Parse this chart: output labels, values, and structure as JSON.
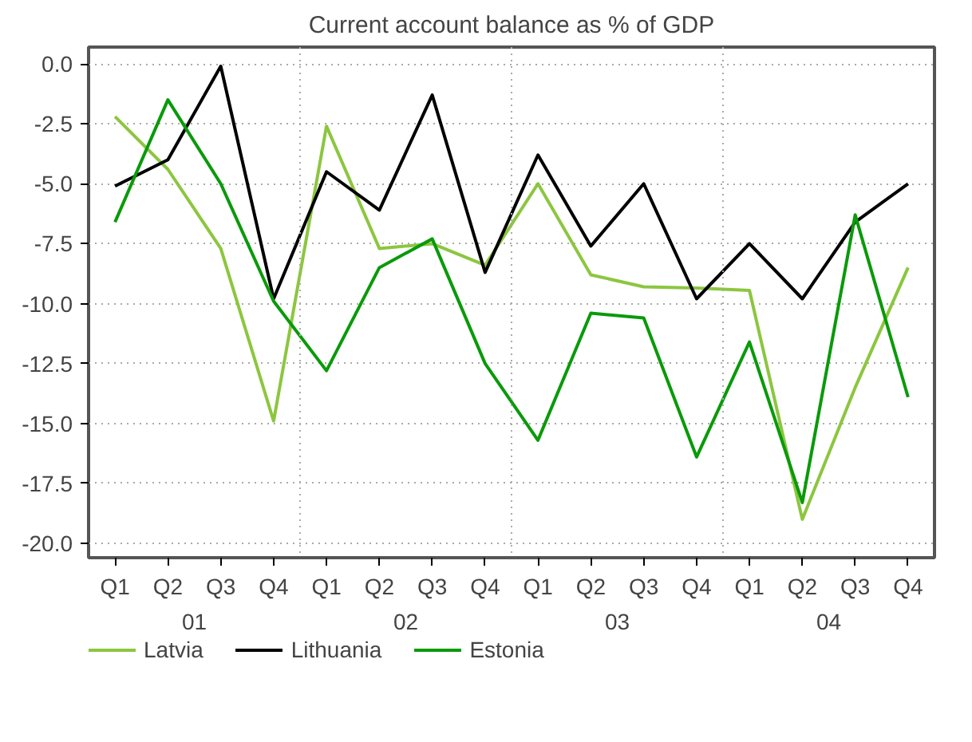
{
  "chart_data": {
    "type": "line",
    "title": "Current account balance as % of GDP",
    "categories": [
      "Q1",
      "Q2",
      "Q3",
      "Q4",
      "Q1",
      "Q2",
      "Q3",
      "Q4",
      "Q1",
      "Q2",
      "Q3",
      "Q4",
      "Q1",
      "Q2",
      "Q3",
      "Q4"
    ],
    "series": [
      {
        "name": "Latvia",
        "color": "#8cc63f",
        "values": [
          -2.2,
          -4.4,
          -7.7,
          -14.9,
          -2.6,
          -7.7,
          -7.5,
          -8.4,
          -5.0,
          -8.8,
          -9.3,
          -9.35,
          -9.45,
          -19.0,
          -13.5,
          -8.5
        ]
      },
      {
        "name": "Lithuania",
        "color": "#000000",
        "values": [
          -5.1,
          -4.0,
          -0.1,
          -9.8,
          -4.5,
          -6.1,
          -1.3,
          -8.7,
          -3.8,
          -7.6,
          -5.0,
          -9.8,
          -7.5,
          -9.8,
          -6.6,
          -5.0
        ]
      },
      {
        "name": "Estonia",
        "color": "#0a9a0a",
        "values": [
          -6.6,
          -1.5,
          -5.0,
          -9.9,
          -12.8,
          -8.5,
          -7.3,
          -12.5,
          -15.7,
          -10.4,
          -10.6,
          -16.4,
          -11.6,
          -18.3,
          -6.3,
          -13.9
        ]
      }
    ],
    "ylim": [
      -20.6,
      0.7
    ],
    "yticks": [
      {
        "value": 0,
        "label": "0.0"
      },
      -2.5,
      {
        "value": -5,
        "label": "-5.0"
      },
      -7.5,
      {
        "value": -10,
        "label": "-10.0"
      },
      -12.5,
      {
        "value": -15,
        "label": "-15.0"
      },
      -17.5,
      {
        "value": -20,
        "label": "-20.0"
      }
    ],
    "annotations": [
      "01",
      "02",
      "03",
      "04"
    ],
    "grid": true,
    "legend": "bottom left",
    "line_style": "solid",
    "marker": "none"
  }
}
